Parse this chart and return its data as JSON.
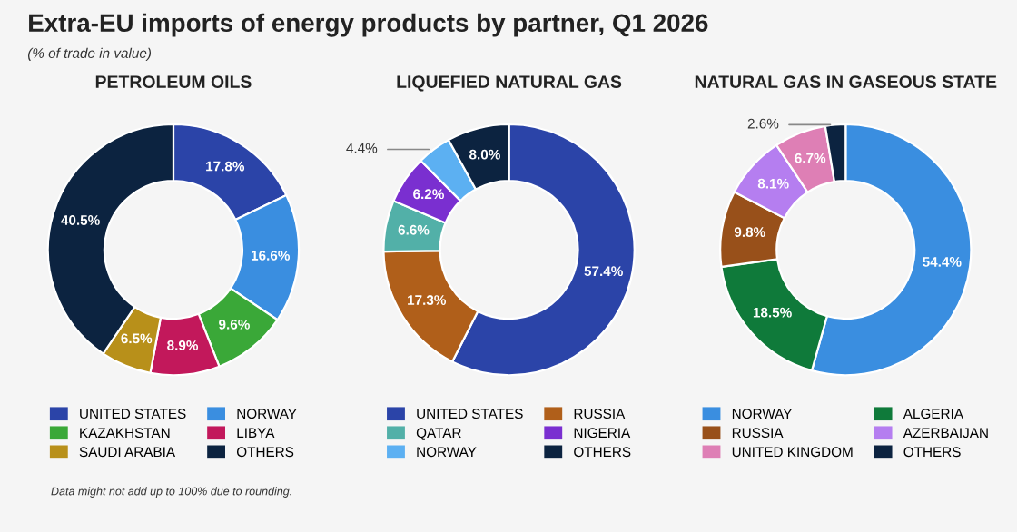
{
  "chart_data": [
    {
      "type": "other",
      "title": "Extra-EU imports of energy products by partner, Q1 2026",
      "subtitle": "(% of trade in value)",
      "annotations": [
        "Data might not add up to 100% due to rounding."
      ]
    },
    {
      "type": "donut",
      "title": "PETROLEUM OILS",
      "categories": [
        "UNITED STATES",
        "NORWAY",
        "KAZAKHSTAN",
        "LIBYA",
        "SAUDI ARABIA",
        "OTHERS"
      ],
      "values": [
        17.8,
        16.6,
        9.6,
        8.9,
        6.5,
        40.5
      ],
      "colors": [
        "#2b44a8",
        "#3a8ee0",
        "#3aa838",
        "#c2185b",
        "#b8901a",
        "#0c2340"
      ],
      "value_labels": [
        "17.8%",
        "16.6%",
        "9.6%",
        "8.9%",
        "6.5%",
        "40.5%"
      ],
      "legend": "bottom"
    },
    {
      "type": "donut",
      "title": "LIQUEFIED NATURAL GAS",
      "categories": [
        "UNITED STATES",
        "RUSSIA",
        "QATAR",
        "NIGERIA",
        "NORWAY",
        "OTHERS"
      ],
      "values": [
        57.4,
        17.3,
        6.6,
        6.2,
        4.4,
        8.0
      ],
      "colors": [
        "#2b44a8",
        "#b05f1a",
        "#52b0a8",
        "#7a2fd0",
        "#5cb0f2",
        "#0c2340"
      ],
      "value_labels": [
        "57.4%",
        "17.3%",
        "6.6%",
        "6.2%",
        "4.4%",
        "8.0%"
      ],
      "legend": "bottom"
    },
    {
      "type": "donut",
      "title": "NATURAL GAS IN GASEOUS STATE",
      "categories": [
        "NORWAY",
        "ALGERIA",
        "RUSSIA",
        "AZERBAIJAN",
        "UNITED KINGDOM",
        "OTHERS"
      ],
      "values": [
        54.4,
        18.5,
        9.8,
        8.1,
        6.7,
        2.6
      ],
      "colors": [
        "#3a8ee0",
        "#0f7a3a",
        "#98501a",
        "#b57ef0",
        "#de7fb5",
        "#0c2340"
      ],
      "value_labels": [
        "54.4%",
        "18.5%",
        "9.8%",
        "8.1%",
        "6.7%",
        "2.6%"
      ],
      "legend": "bottom"
    }
  ]
}
